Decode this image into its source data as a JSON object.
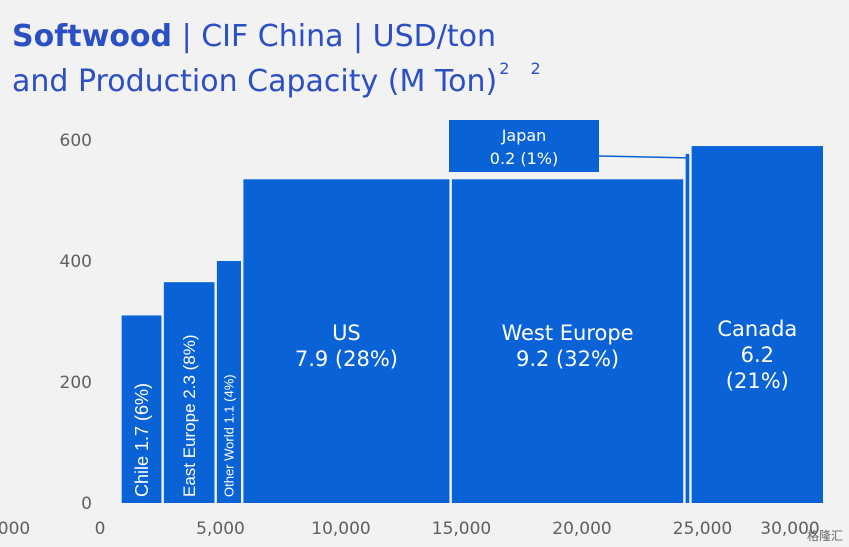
{
  "title": {
    "bold": "Softwood",
    "rest": " | CIF China | USD/ton",
    "line2": "and Production Capacity (M Ton)",
    "sup1": "2",
    "sup2": "2"
  },
  "watermark": "格隆汇",
  "chart_data": {
    "type": "bar",
    "subtype": "variable-width (marimekko) bar",
    "title": "Softwood | CIF China | USD/ton and Production Capacity (M Ton)",
    "xlabel": "",
    "ylabel": "",
    "xlim": [
      0,
      30000
    ],
    "ylim": [
      0,
      600
    ],
    "x_ticks": [
      "0",
      "5,000",
      "10,000",
      "15,000",
      "20,000",
      "25,000",
      "30,000"
    ],
    "x_tick_values": [
      0,
      5000,
      10000,
      15000,
      20000,
      25000,
      30000
    ],
    "x_tick_left_partial": "000",
    "y_ticks": [
      "0",
      "200",
      "400",
      "600"
    ],
    "y_tick_values": [
      0,
      200,
      400,
      600
    ],
    "grid": false,
    "bar_color": "#0a63d6",
    "bars": [
      {
        "name": "Chile",
        "capacity": "1.7",
        "share": "(6%)",
        "label": "Chile 1.7 (6%)",
        "x0": 900,
        "x1": 2550,
        "value": 310,
        "orient": "vertical",
        "size": 18
      },
      {
        "name": "East Europe",
        "capacity": "2.3",
        "share": "(8%)",
        "label": "East Europe 2.3 (8%)",
        "x0": 2650,
        "x1": 4750,
        "value": 365,
        "orient": "vertical",
        "size": 17
      },
      {
        "name": "Other World",
        "capacity": "1.1",
        "share": "(4%)",
        "label": "Other World 1.1 (4%)",
        "x0": 4850,
        "x1": 5850,
        "value": 400,
        "orient": "vertical",
        "size": 13
      },
      {
        "name": "US",
        "capacity": "7.9",
        "share": "(28%)",
        "lines": [
          "US",
          "7.9 (28%)"
        ],
        "x0": 5950,
        "x1": 14500,
        "value": 535,
        "orient": "horizontal",
        "size": 21
      },
      {
        "name": "West Europe",
        "capacity": "9.2",
        "share": "(32%)",
        "lines": [
          "West Europe",
          "9.2 (32%)"
        ],
        "x0": 14600,
        "x1": 24200,
        "value": 535,
        "orient": "horizontal",
        "size": 21
      },
      {
        "name": "Japan",
        "capacity": "0.2",
        "share": "(1%)",
        "x0": 24300,
        "x1": 24450,
        "value": 577,
        "orient": "none",
        "size": 0
      },
      {
        "name": "Canada",
        "capacity": "6.2",
        "share": "(21%)",
        "lines": [
          "Canada",
          "6.2",
          "(21%)"
        ],
        "x0": 24550,
        "x1": 30000,
        "value": 590,
        "orient": "horizontal",
        "size": 21
      }
    ],
    "callout": {
      "lines": [
        "Japan",
        "0.2 (1%)"
      ],
      "bar": "Japan"
    }
  }
}
